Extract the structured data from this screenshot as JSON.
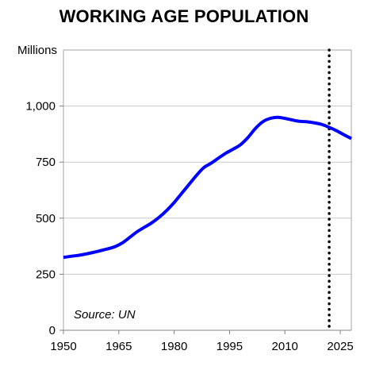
{
  "chart_data": {
    "type": "line",
    "title": "WORKING AGE POPULATION",
    "ylabel": "Millions",
    "xlabel": "",
    "xlim": [
      1950,
      2028
    ],
    "ylim": [
      0,
      1250
    ],
    "x_ticks": [
      1950,
      1965,
      1980,
      1995,
      2010,
      2025
    ],
    "y_ticks": [
      0,
      250,
      500,
      750,
      1000
    ],
    "y_tick_labels": [
      "0",
      "250",
      "500",
      "750",
      "1,000"
    ],
    "grid": true,
    "series": [
      {
        "name": "",
        "color": "#0000ff",
        "x": [
          1950,
          1952,
          1954,
          1956,
          1958,
          1960,
          1962,
          1964,
          1966,
          1968,
          1970,
          1972,
          1974,
          1976,
          1978,
          1980,
          1982,
          1984,
          1986,
          1988,
          1990,
          1992,
          1994,
          1996,
          1998,
          2000,
          2002,
          2004,
          2006,
          2008,
          2010,
          2012,
          2014,
          2016,
          2018,
          2020,
          2022,
          2024,
          2026,
          2028
        ],
        "values": [
          325,
          330,
          334,
          340,
          347,
          355,
          363,
          373,
          390,
          415,
          440,
          460,
          480,
          505,
          535,
          570,
          610,
          650,
          690,
          725,
          745,
          768,
          790,
          808,
          828,
          860,
          900,
          930,
          945,
          950,
          945,
          938,
          932,
          930,
          925,
          918,
          905,
          890,
          872,
          855
        ]
      }
    ],
    "reference_line": {
      "x": 2022,
      "style": "dotted",
      "color": "#000000"
    },
    "annotations": [
      {
        "text": "Source: UN"
      }
    ]
  }
}
